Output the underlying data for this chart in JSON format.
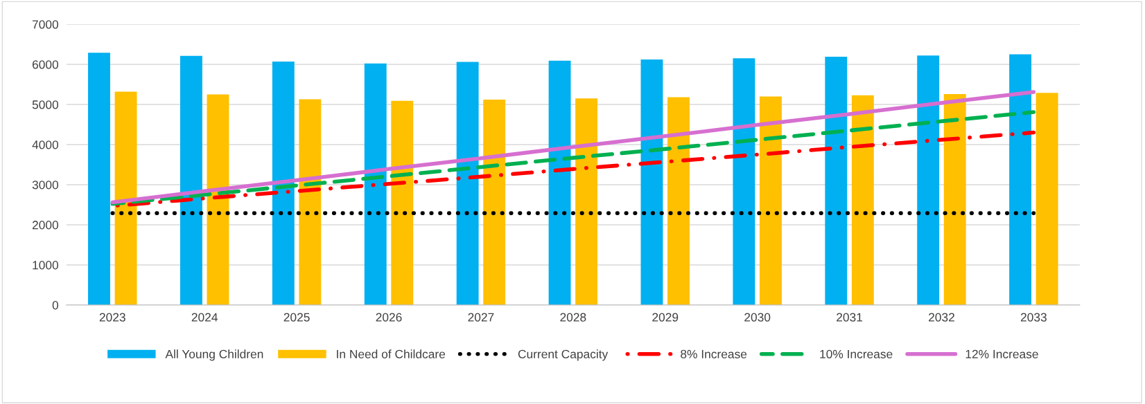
{
  "chart_data": {
    "type": "bar",
    "categories": [
      "2023",
      "2024",
      "2025",
      "2026",
      "2027",
      "2028",
      "2029",
      "2030",
      "2031",
      "2032",
      "2033"
    ],
    "series": [
      {
        "name": "All Young Children",
        "color": "#00b0f0",
        "values": [
          6290,
          6210,
          6070,
          6020,
          6060,
          6090,
          6120,
          6150,
          6190,
          6220,
          6250
        ]
      },
      {
        "name": "In Need of Childcare",
        "color": "#ffc000",
        "values": [
          5320,
          5250,
          5130,
          5090,
          5120,
          5150,
          5180,
          5200,
          5230,
          5260,
          5290
        ]
      },
      {
        "name": "Current Capacity",
        "type": "line",
        "color": "#000000",
        "line_style": "dotted",
        "values": [
          2290,
          2290,
          2290,
          2290,
          2290,
          2290,
          2290,
          2290,
          2290,
          2290,
          2290
        ]
      },
      {
        "name": "8% Increase",
        "type": "line",
        "color": "#ff0000",
        "line_style": "dashdot",
        "values": [
          2470,
          2660,
          2840,
          3020,
          3200,
          3390,
          3570,
          3750,
          3940,
          4120,
          4300
        ]
      },
      {
        "name": "10% Increase",
        "type": "line",
        "color": "#00b050",
        "line_style": "dashed",
        "values": [
          2520,
          2750,
          2980,
          3210,
          3440,
          3670,
          3890,
          4120,
          4350,
          4580,
          4810
        ]
      },
      {
        "name": "12% Increase",
        "type": "line",
        "color": "#d66fd0",
        "line_style": "solid",
        "values": [
          2560,
          2840,
          3110,
          3390,
          3660,
          3940,
          4210,
          4490,
          4760,
          5040,
          5310
        ]
      }
    ],
    "ylim": [
      0,
      7000
    ],
    "yticks": [
      0,
      1000,
      2000,
      3000,
      4000,
      5000,
      6000,
      7000
    ],
    "grid": "y",
    "legend": "bottom"
  }
}
